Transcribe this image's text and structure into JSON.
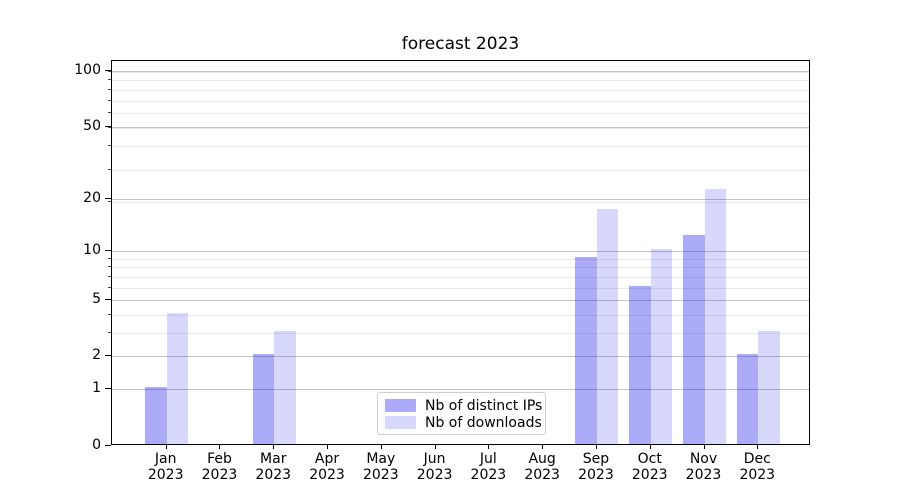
{
  "title": "forecast 2023",
  "chart_data": {
    "type": "bar",
    "title": "forecast 2023",
    "categories": [
      "Jan 2023",
      "Feb 2023",
      "Mar 2023",
      "Apr 2023",
      "May 2023",
      "Jun 2023",
      "Jul 2023",
      "Aug 2023",
      "Sep 2023",
      "Oct 2023",
      "Nov 2023",
      "Dec 2023"
    ],
    "series": [
      {
        "name": "Nb of distinct IPs",
        "color": "rgba(15,15,235,0.35)",
        "values": [
          1,
          0,
          2,
          0,
          0,
          0,
          0,
          0,
          9,
          6,
          12,
          2
        ]
      },
      {
        "name": "Nb of downloads",
        "color": "rgba(15,15,235,0.16)",
        "values": [
          4,
          0,
          3,
          0,
          0,
          0,
          0,
          0,
          17,
          10,
          22,
          3
        ]
      }
    ],
    "xlabel": "",
    "ylabel": "",
    "yscale": "log1p",
    "yticks": [
      0,
      1,
      2,
      5,
      10,
      20,
      50,
      100
    ],
    "minor_gridlines_at": [
      3,
      4,
      6,
      7,
      8,
      9,
      19,
      29,
      39,
      49,
      59,
      69,
      79,
      89,
      99
    ],
    "ylim": [
      0,
      113
    ],
    "grid": true,
    "legend_position": "lower center",
    "colors": {
      "grid_major": "#c3c3c3",
      "grid_minor": "#e9e9e9",
      "axis": "#000000"
    }
  }
}
